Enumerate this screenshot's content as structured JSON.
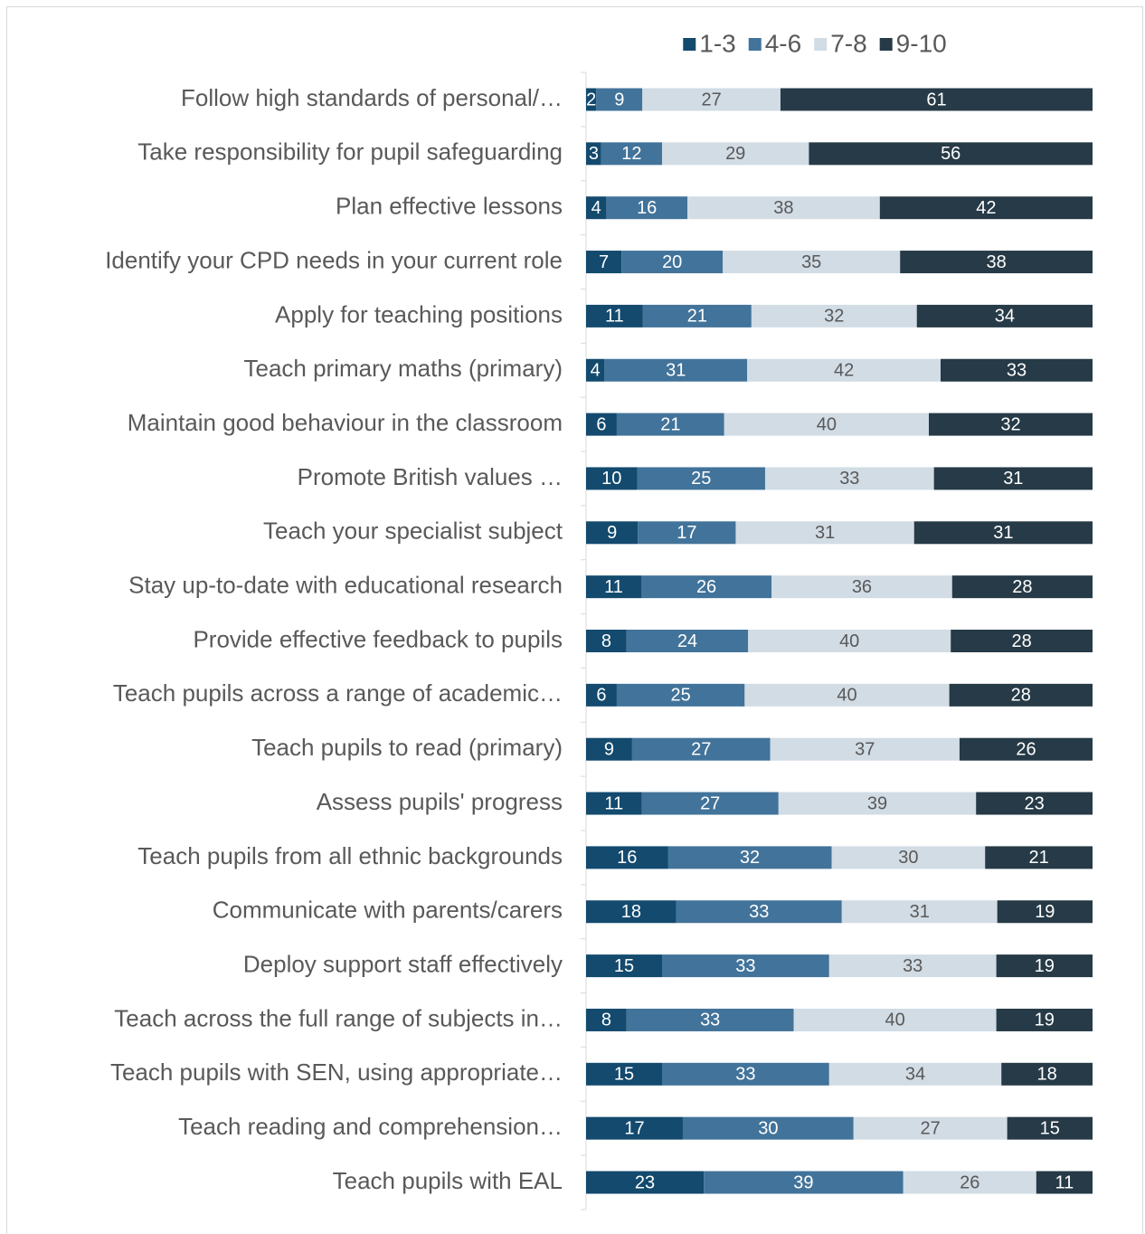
{
  "chart_data": {
    "type": "bar",
    "orientation": "horizontal",
    "stacked": true,
    "normalized": true,
    "legend": "top",
    "categories": [
      "Follow high standards of personal/…",
      "Take responsibility for pupil safeguarding",
      "Plan effective lessons",
      "Identify your CPD needs in your current role",
      "Apply for teaching positions",
      "Teach primary maths (primary)",
      "Maintain good behaviour in the classroom",
      "Promote British values …",
      "Teach your specialist subject",
      "Stay up-to-date with educational research",
      "Provide effective feedback to pupils",
      "Teach pupils across a range of academic…",
      "Teach pupils to read (primary)",
      "Assess pupils' progress",
      "Teach pupils from all ethnic backgrounds",
      "Communicate with parents/carers",
      "Deploy support staff effectively",
      "Teach across the full range of subjects in…",
      "Teach pupils with SEN, using appropriate…",
      "Teach reading and comprehension…",
      "Teach pupils with EAL"
    ],
    "series": [
      {
        "name": "1-3",
        "color": "#134a6e",
        "label_color": "#ffffff",
        "values": [
          2,
          3,
          4,
          7,
          11,
          4,
          6,
          10,
          9,
          11,
          8,
          6,
          9,
          11,
          16,
          18,
          15,
          8,
          15,
          17,
          23
        ]
      },
      {
        "name": "4-6",
        "color": "#42739a",
        "label_color": "#ffffff",
        "values": [
          9,
          12,
          16,
          20,
          21,
          31,
          21,
          25,
          17,
          26,
          24,
          25,
          27,
          27,
          32,
          33,
          33,
          33,
          33,
          30,
          39
        ]
      },
      {
        "name": "7-8",
        "color": "#d1dce5",
        "label_color": "#595959",
        "values": [
          27,
          29,
          38,
          35,
          32,
          42,
          40,
          33,
          31,
          36,
          40,
          40,
          37,
          39,
          30,
          31,
          33,
          40,
          34,
          27,
          26
        ]
      },
      {
        "name": "9-10",
        "color": "#263a47",
        "label_color": "#ffffff",
        "values": [
          61,
          56,
          42,
          38,
          34,
          33,
          32,
          31,
          31,
          28,
          28,
          28,
          26,
          23,
          21,
          19,
          19,
          19,
          18,
          15,
          11
        ]
      }
    ]
  }
}
